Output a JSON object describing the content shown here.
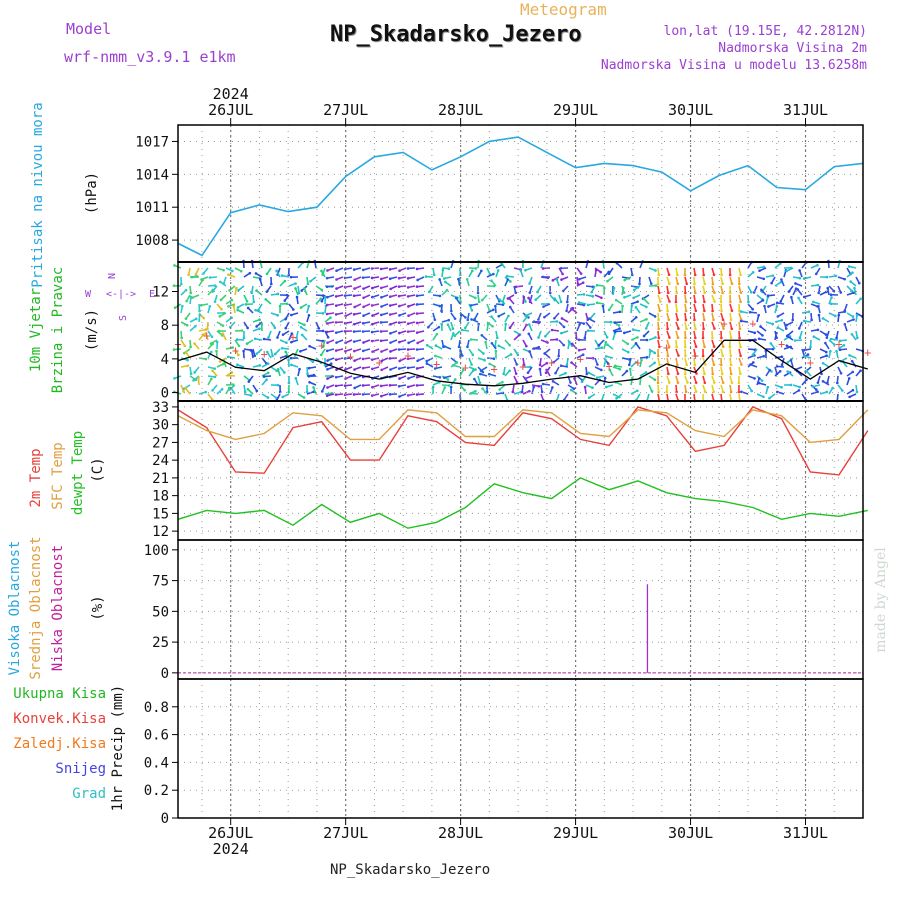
{
  "header": {
    "title": "NP_Skadarsko_Jezero",
    "subtitle": "Meteogram",
    "model_label": "Model",
    "model_name": "wrf-nmm_v3.9.1  e1km",
    "coords": "lon,lat (19.15E, 42.2812N)",
    "elev_station": "Nadmorska Visina 2m",
    "elev_model": "Nadmorska Visina u modelu 13.6258m",
    "footer": "NP_Skadarsko_Jezero",
    "credit": "made by Angel",
    "year": "2024"
  },
  "colors": {
    "pressure": "#29a8e0",
    "t2m": "#e8403a",
    "tsfc": "#e0a040",
    "dewpoint": "#22c022",
    "wind_line": "#000000",
    "cloud_low": "#c0209a",
    "label_purple": "#9a3fd0",
    "label_green": "#22b822",
    "label_red": "#e8403a",
    "label_orange": "#f07a20",
    "label_blue": "#4444e0",
    "label_cyan": "#30c0c0"
  },
  "chart_data": [
    {
      "type": "line",
      "panel": "pressure",
      "title": "Pritisak na nivou mora",
      "ylabel": "(hPa)",
      "x": [
        "2024-07-25T13:00",
        "2024-07-25T18:00",
        "2024-07-26T00:00",
        "2024-07-26T06:00",
        "2024-07-26T12:00",
        "2024-07-26T18:00",
        "2024-07-27T00:00",
        "2024-07-27T06:00",
        "2024-07-27T12:00",
        "2024-07-27T18:00",
        "2024-07-28T00:00",
        "2024-07-28T06:00",
        "2024-07-28T12:00",
        "2024-07-28T18:00",
        "2024-07-29T00:00",
        "2024-07-29T06:00",
        "2024-07-29T12:00",
        "2024-07-29T18:00",
        "2024-07-30T00:00",
        "2024-07-30T06:00",
        "2024-07-30T12:00",
        "2024-07-30T18:00",
        "2024-07-31T00:00",
        "2024-07-31T06:00",
        "2024-07-31T12:00"
      ],
      "y": [
        1007.7,
        1006.6,
        1010.5,
        1011.2,
        1010.6,
        1011.0,
        1013.8,
        1015.6,
        1016.0,
        1014.4,
        1015.6,
        1017.0,
        1017.4,
        1016.0,
        1014.6,
        1015.0,
        1014.8,
        1014.2,
        1012.5,
        1013.9,
        1014.8,
        1012.8,
        1012.6,
        1014.7,
        1015.0
      ],
      "yticks": [
        1008,
        1011,
        1014,
        1017
      ],
      "ylim": [
        1006,
        1018.5
      ]
    },
    {
      "type": "line",
      "panel": "wind",
      "title": "10m Vjetar Brzina i Pravac",
      "ylabel": "(m/s)",
      "compass": [
        "N",
        "E",
        "S",
        "W"
      ],
      "series": [
        {
          "name": "speed",
          "x": [
            0,
            0.25,
            0.5,
            0.75,
            1,
            1.25,
            1.5,
            1.75,
            2,
            2.25,
            2.5,
            2.75,
            3,
            3.25,
            3.5,
            3.75,
            4,
            4.25,
            4.5,
            4.75,
            5,
            5.25,
            5.5,
            5.75,
            6
          ],
          "values": [
            3.8,
            4.8,
            3.0,
            2.6,
            4.6,
            3.6,
            2.3,
            1.6,
            2.4,
            1.4,
            1.0,
            0.8,
            1.1,
            1.6,
            2.0,
            1.2,
            1.6,
            3.4,
            2.4,
            6.2,
            6.2,
            3.8,
            1.6,
            3.8,
            2.8
          ]
        }
      ],
      "yticks": [
        0,
        4,
        8,
        12
      ],
      "ylim": [
        -1,
        15.5
      ]
    },
    {
      "type": "line",
      "panel": "temperature",
      "ylabel": "(C)",
      "series": [
        {
          "name": "2m Temp",
          "values": [
            32.5,
            29.5,
            22.0,
            21.8,
            29.5,
            30.5,
            24.0,
            24.0,
            31.5,
            30.5,
            27.0,
            26.5,
            32.0,
            31.0,
            27.5,
            26.5,
            33.0,
            31.5,
            25.5,
            26.5,
            33.0,
            31.0,
            22.0,
            21.5,
            29.0
          ]
        },
        {
          "name": "SFC Temp",
          "values": [
            31.5,
            29.0,
            27.5,
            28.5,
            32.0,
            31.5,
            27.5,
            27.5,
            32.5,
            32.0,
            28.0,
            28.0,
            32.5,
            32.0,
            28.5,
            28.0,
            32.5,
            32.0,
            29.0,
            28.0,
            32.5,
            31.5,
            27.0,
            27.5,
            32.5
          ]
        },
        {
          "name": "dewpt Temp",
          "values": [
            14.0,
            15.5,
            15.0,
            15.5,
            13.0,
            16.5,
            13.5,
            15.0,
            12.5,
            13.5,
            16.0,
            20.0,
            18.5,
            17.5,
            21.0,
            19.0,
            20.5,
            18.5,
            17.5,
            17.0,
            16.0,
            14.0,
            15.0,
            14.5,
            15.5
          ]
        }
      ],
      "yticks": [
        12,
        15,
        18,
        21,
        24,
        27,
        30,
        33
      ],
      "ylim": [
        10.5,
        34
      ]
    },
    {
      "type": "bar",
      "panel": "clouds",
      "ylabel": "(%)",
      "series": [
        {
          "name": "Visoka Oblacnost",
          "values": []
        },
        {
          "name": "Srednja Oblacnost",
          "values": []
        },
        {
          "name": "Niska Oblacnost",
          "values": [
            {
              "x": "2024-07-29T15:00",
              "y": 72
            }
          ]
        }
      ],
      "yticks": [
        0,
        25,
        50,
        75,
        100
      ],
      "ylim": [
        -5,
        108
      ]
    },
    {
      "type": "bar",
      "panel": "precip",
      "ylabel": "1hr Precip (mm)",
      "series": [
        {
          "name": "Ukupna Kisa",
          "values": []
        },
        {
          "name": "Konvek.Kisa",
          "values": []
        },
        {
          "name": "Zaledj.Kisa",
          "values": []
        },
        {
          "name": "Snijeg",
          "values": []
        },
        {
          "name": "Grad",
          "values": []
        }
      ],
      "yticks": [
        0,
        0.2,
        0.4,
        0.6,
        0.8
      ],
      "ylim": [
        0,
        1.0
      ]
    }
  ],
  "axis": {
    "days": [
      "26JUL",
      "27JUL",
      "28JUL",
      "29JUL",
      "30JUL",
      "31JUL"
    ]
  }
}
